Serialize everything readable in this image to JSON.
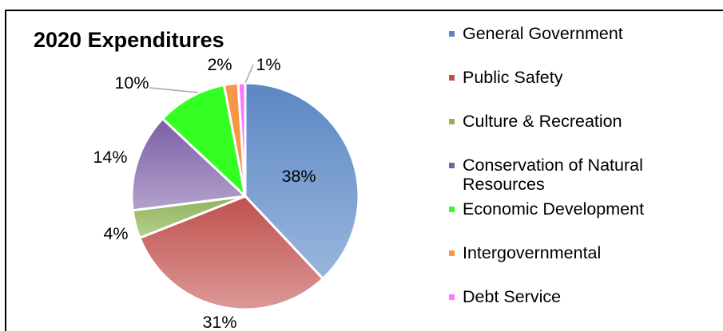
{
  "chart_data": {
    "type": "pie",
    "title": "2020 Expenditures",
    "series": [
      {
        "name": "General Government",
        "value": 38,
        "label": "38%",
        "color": "#5b87c3",
        "color_light": "#9ab6dd"
      },
      {
        "name": "Public Safety",
        "value": 31,
        "label": "31%",
        "color": "#c0504d",
        "color_light": "#db9997"
      },
      {
        "name": "Culture & Recreation",
        "value": 4,
        "label": "4%",
        "color": "#8fb35a",
        "color_light": "#b7d08f"
      },
      {
        "name": "Conservation of Natural Resources",
        "value": 14,
        "label": "14%",
        "color": "#7b5ea7",
        "color_light": "#b3a2cc"
      },
      {
        "name": "Economic Development",
        "value": 10,
        "label": "10%",
        "color": "#33ff22",
        "color_light": "#33ff22"
      },
      {
        "name": "Intergovernmental",
        "value": 2,
        "label": "2%",
        "color": "#f79646",
        "color_light": "#f79646"
      },
      {
        "name": "Debt Service",
        "value": 1,
        "label": "1%",
        "color": "#ff77ff",
        "color_light": "#ff77ff"
      }
    ],
    "legend_position": "right"
  }
}
